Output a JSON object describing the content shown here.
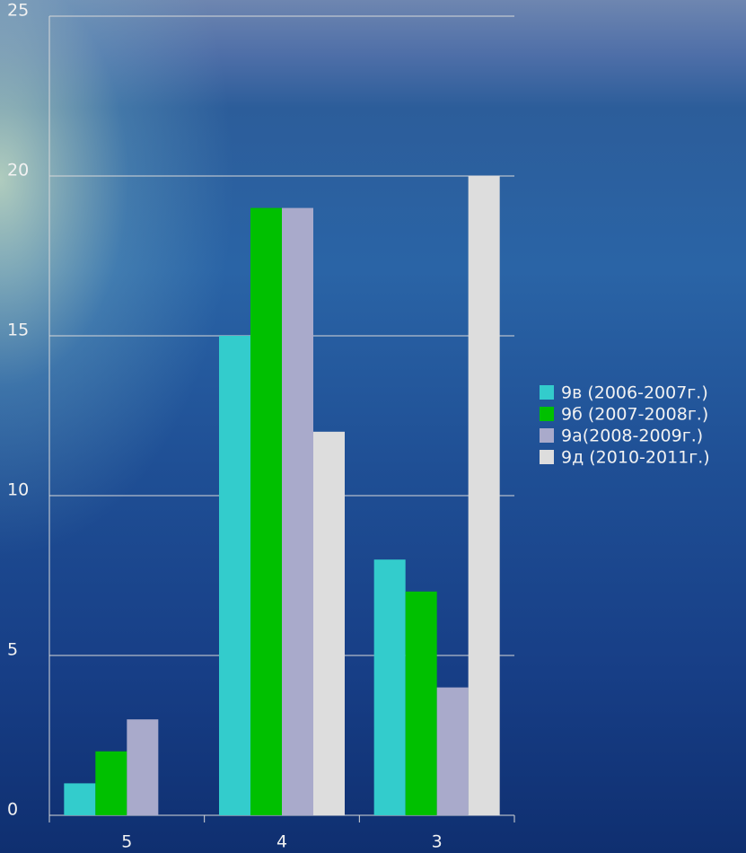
{
  "chart_data": {
    "type": "bar",
    "categories": [
      "5",
      "4",
      "3"
    ],
    "series": [
      {
        "name": "9в (2006-2007г.)",
        "color": "#33cccc",
        "values": [
          1,
          15,
          8
        ]
      },
      {
        "name": "9б (2007-2008г.)",
        "color": "#00c000",
        "values": [
          2,
          19,
          7
        ]
      },
      {
        "name": "9а(2008-2009г.)",
        "color": "#a9aacb",
        "values": [
          3,
          19,
          4
        ]
      },
      {
        "name": "9д (2010-2011г.)",
        "color": "#dddddd",
        "values": [
          0,
          12,
          20
        ]
      }
    ],
    "ylim": [
      0,
      25
    ],
    "yticks": [
      0,
      5,
      10,
      15,
      20,
      25
    ],
    "grid": true,
    "legend": "right"
  }
}
